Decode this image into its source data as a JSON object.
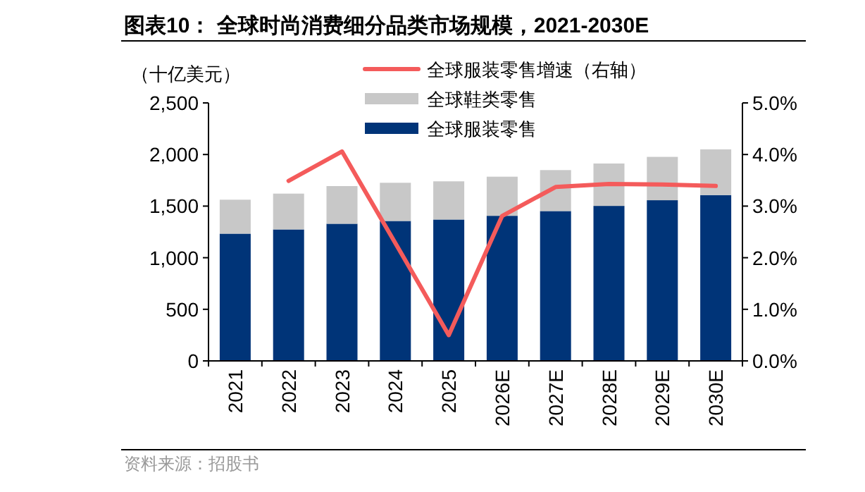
{
  "chart_data": {
    "type": "bar",
    "title": "图表10： 全球时尚消费细分品类市场规模，2021-2030E",
    "ylabel": "（十亿美元）",
    "stacked": true,
    "categories": [
      "2021",
      "2022",
      "2023",
      "2024",
      "2025",
      "2026E",
      "2027E",
      "2028E",
      "2029E",
      "2030E"
    ],
    "series": [
      {
        "name": "全球服装零售",
        "color": "#003478",
        "values": [
          1233,
          1274,
          1329,
          1356,
          1370,
          1406,
          1452,
          1502,
          1557,
          1607
        ]
      },
      {
        "name": "全球鞋类零售",
        "color": "#c8c8c8",
        "values": [
          329,
          347,
          365,
          370,
          370,
          379,
          397,
          411,
          420,
          443
        ]
      },
      {
        "name": "全球服装零售增速（右轴）",
        "type": "line",
        "axis": "y2",
        "color": "#f45b5b",
        "values": [
          null,
          3.49,
          4.06,
          2.28,
          0.5,
          2.81,
          3.37,
          3.43,
          3.42,
          3.39
        ]
      }
    ],
    "ylim": [
      0,
      2500
    ],
    "yticks": [
      {
        "value": 0,
        "label": "0"
      },
      {
        "value": 500,
        "label": "500"
      },
      {
        "value": 1000,
        "label": "1,000"
      },
      {
        "value": 1500,
        "label": "1,500"
      },
      {
        "value": 2000,
        "label": "2,000"
      },
      {
        "value": 2500,
        "label": "2,500"
      }
    ],
    "y2lim": [
      0,
      5
    ],
    "y2ticks": [
      {
        "value": 0,
        "label": "0.0%"
      },
      {
        "value": 1,
        "label": "1.0%"
      },
      {
        "value": 2,
        "label": "2.0%"
      },
      {
        "value": 3,
        "label": "3.0%"
      },
      {
        "value": 4,
        "label": "4.0%"
      },
      {
        "value": 5,
        "label": "5.0%"
      }
    ],
    "legend": "top",
    "grid": false,
    "annotations": [
      "资料来源：招股书"
    ]
  }
}
